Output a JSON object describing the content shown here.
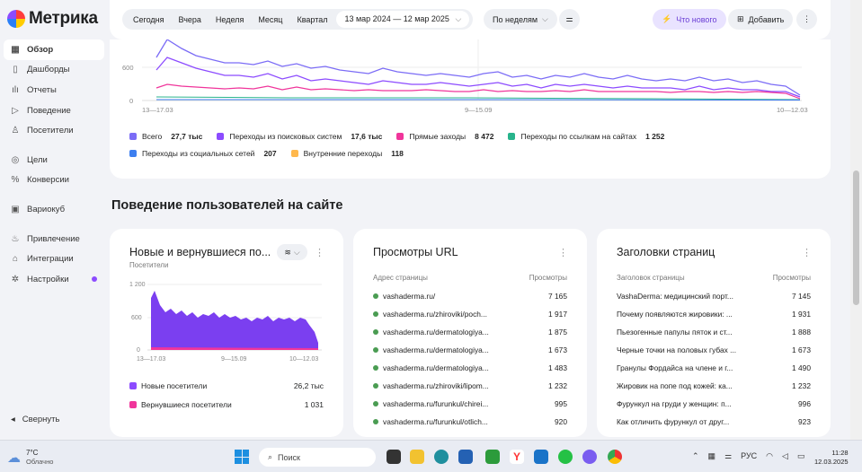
{
  "app": {
    "logo_text": "Метрика"
  },
  "sidebar": {
    "items": [
      {
        "label": "Обзор",
        "icon": "grid-icon",
        "active": true
      },
      {
        "label": "Дашборды",
        "icon": "dashboard-icon"
      },
      {
        "label": "Отчеты",
        "icon": "bar-chart-icon"
      },
      {
        "label": "Поведение",
        "icon": "play-icon"
      },
      {
        "label": "Посетители",
        "icon": "person-icon"
      },
      {
        "label": "Цели",
        "icon": "target-icon"
      },
      {
        "label": "Конверсии",
        "icon": "percent-icon"
      },
      {
        "label": "Вариокуб",
        "icon": "cube-icon"
      },
      {
        "label": "Привлечение",
        "icon": "flame-icon"
      },
      {
        "label": "Интеграции",
        "icon": "plug-icon"
      },
      {
        "label": "Настройки",
        "icon": "gear-icon"
      }
    ],
    "collapse_label": "Свернуть"
  },
  "topbar": {
    "periods": [
      "Сегодня",
      "Вчера",
      "Неделя",
      "Месяц",
      "Квартал"
    ],
    "date_range": "13 мар 2024 — 12 мар 2025",
    "grouping": "По неделям",
    "whats_new": "Что нового",
    "add": "Добавить"
  },
  "main_chart": {
    "ytick_labels": [
      "600",
      "0"
    ],
    "xtick_labels": [
      "13—17.03",
      "9—15.09",
      "10—12.03"
    ],
    "legend": [
      {
        "name": "Всего",
        "value": "27,7 тыс",
        "color": "#7b6cf6"
      },
      {
        "name": "Переходы из поисковых систем",
        "value": "17,6 тыс",
        "color": "#8c4bff"
      },
      {
        "name": "Прямые заходы",
        "value": "8 472",
        "color": "#f0359b"
      },
      {
        "name": "Переходы по ссылкам на сайтах",
        "value": "1 252",
        "color": "#28b48c"
      },
      {
        "name": "Переходы из социальных сетей",
        "value": "207",
        "color": "#3d7ff0"
      },
      {
        "name": "Внутренние переходы",
        "value": "118",
        "color": "#ffb84d"
      }
    ]
  },
  "section_title": "Поведение пользователей на сайте",
  "card_visitors": {
    "title": "Новые и вернувшиеся по...",
    "subtitle": "Посетители",
    "ytick_labels": [
      "1 200",
      "600",
      "0"
    ],
    "xtick_labels": [
      "13—17.03",
      "9—15.09",
      "10—12.03"
    ],
    "legend": [
      {
        "name": "Новые посетители",
        "value": "26,2 тыс",
        "color": "#8c4bff"
      },
      {
        "name": "Вернувшиеся посетители",
        "value": "1 031",
        "color": "#f0359b"
      }
    ]
  },
  "card_urls": {
    "title": "Просмотры URL",
    "col1": "Адрес страницы",
    "col2": "Просмотры",
    "rows": [
      {
        "label": "vashaderma.ru/",
        "value": "7 165"
      },
      {
        "label": "vashaderma.ru/zhiroviki/poch...",
        "value": "1 917"
      },
      {
        "label": "vashaderma.ru/dermatologiya...",
        "value": "1 875"
      },
      {
        "label": "vashaderma.ru/dermatologiya...",
        "value": "1 673"
      },
      {
        "label": "vashaderma.ru/dermatologiya...",
        "value": "1 483"
      },
      {
        "label": "vashaderma.ru/zhiroviki/lipom...",
        "value": "1 232"
      },
      {
        "label": "vashaderma.ru/furunkul/chirei...",
        "value": "995"
      },
      {
        "label": "vashaderma.ru/furunkul/otlich...",
        "value": "920"
      }
    ]
  },
  "card_titles": {
    "title": "Заголовки страниц",
    "col1": "Заголовок страницы",
    "col2": "Просмотры",
    "rows": [
      {
        "label": "VashaDerma: медицинский порт...",
        "value": "7 145"
      },
      {
        "label": "Почему появляются жировики: ...",
        "value": "1 931"
      },
      {
        "label": "Пьезогенные папулы пяток и ст...",
        "value": "1 888"
      },
      {
        "label": "Черные точки на половых губах ...",
        "value": "1 673"
      },
      {
        "label": "Гранулы Фордайса на члене и г...",
        "value": "1 490"
      },
      {
        "label": "Жировик на попе под кожей: ка...",
        "value": "1 232"
      },
      {
        "label": "Фурункул на груди у женщин: п...",
        "value": "996"
      },
      {
        "label": "Как отличить фурункул от друг...",
        "value": "923"
      }
    ]
  },
  "taskbar": {
    "weather_temp": "7°C",
    "weather_desc": "Облачно",
    "search_placeholder": "Поиск",
    "lang": "РУС",
    "time": "11:28",
    "date": "12.03.2025"
  }
}
